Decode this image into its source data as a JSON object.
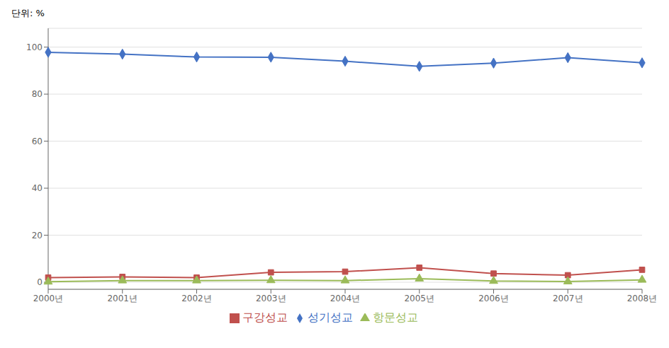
{
  "chart_data": {
    "type": "line",
    "ylabel": "단위: %",
    "categories": [
      "2000년",
      "2001년",
      "2002년",
      "2003년",
      "2004년",
      "2005년",
      "2006년",
      "2007년",
      "2008년"
    ],
    "series": [
      {
        "name": "성기성교",
        "color": "#4472C4",
        "marker": "diamond",
        "values": [
          97.8,
          97.0,
          95.8,
          95.7,
          94.0,
          91.8,
          93.2,
          95.5,
          93.3
        ]
      },
      {
        "name": "구강성교",
        "color": "#C0504D",
        "marker": "square",
        "values": [
          2.0,
          2.3,
          2.0,
          4.2,
          4.5,
          6.2,
          3.7,
          3.0,
          5.3
        ]
      },
      {
        "name": "항문성교",
        "color": "#9BBB59",
        "marker": "triangle",
        "values": [
          0.2,
          0.7,
          0.7,
          0.8,
          0.7,
          1.5,
          0.5,
          0.3,
          1.0
        ]
      }
    ],
    "ylim": [
      -3,
      108
    ],
    "yticks": [
      0,
      20,
      40,
      60,
      80,
      100
    ],
    "grid": true,
    "legend": "bottom"
  }
}
